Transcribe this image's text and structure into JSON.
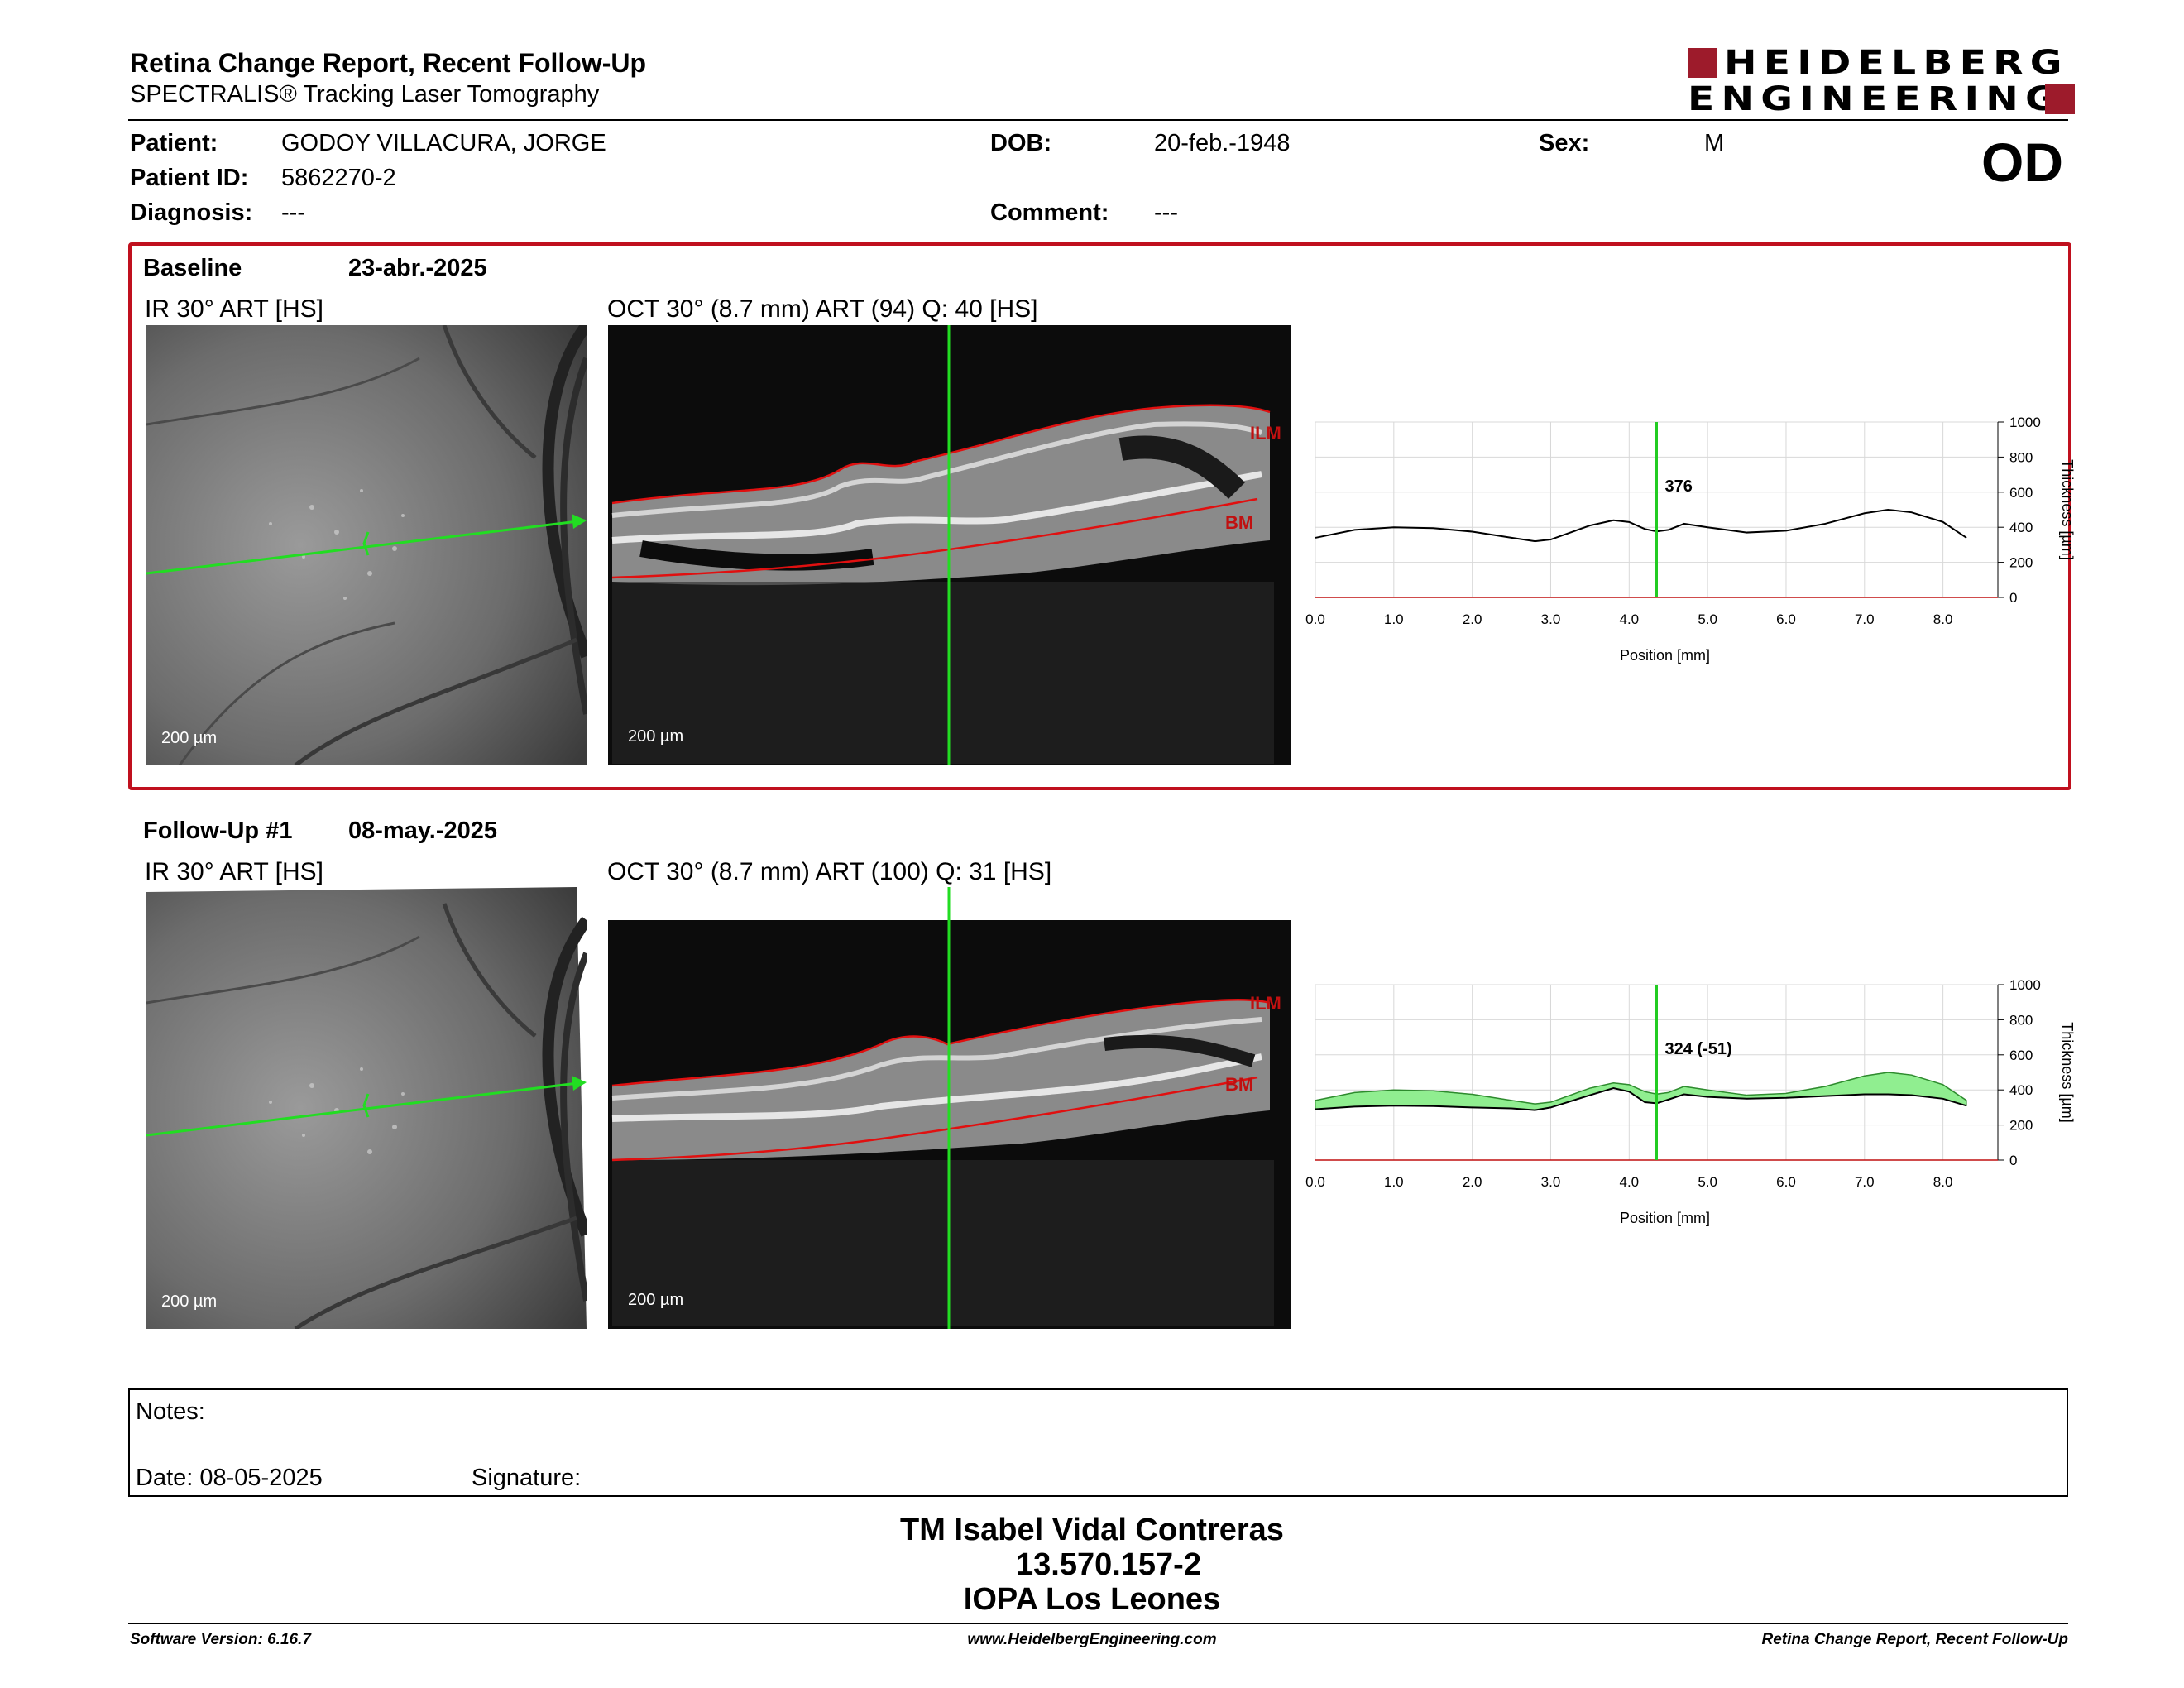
{
  "header": {
    "title": "Retina Change Report, Recent Follow-Up",
    "subtitle": "SPECTRALIS® Tracking Laser Tomography",
    "logo_line1": "HEIDELBERG",
    "logo_line2": "ENGINEERING",
    "eye": "OD"
  },
  "patient": {
    "patient_label": "Patient:",
    "patient_value": "GODOY  VILLACURA, JORGE",
    "id_label": "Patient ID:",
    "id_value": "5862270-2",
    "diagnosis_label": "Diagnosis:",
    "diagnosis_value": "---",
    "dob_label": "DOB:",
    "dob_value": "20-feb.-1948",
    "comment_label": "Comment:",
    "comment_value": "---",
    "sex_label": "Sex:",
    "sex_value": "M"
  },
  "baseline": {
    "label": "Baseline",
    "date": "23-abr.-2025",
    "ir_label": "IR 30° ART [HS]",
    "oct_label": "OCT 30° (8.7 mm) ART (94) Q: 40 [HS]",
    "scale_ir": "200 µm",
    "scale_oct": "200 µm",
    "ilm": "ILM",
    "bm": "BM",
    "marker_value": "376"
  },
  "followup": {
    "label": "Follow-Up #1",
    "date": "08-may.-2025",
    "ir_label": "IR 30° ART [HS]",
    "oct_label": "OCT 30° (8.7 mm) ART (100) Q: 31 [HS]",
    "scale_ir": "200 µm",
    "scale_oct": "200 µm",
    "ilm": "ILM",
    "bm": "BM",
    "marker_value": "324 (-51)"
  },
  "chart_data": [
    {
      "type": "line",
      "xlabel": "Position [mm]",
      "ylabel": "Thickness [µm]",
      "xlim": [
        0,
        8.7
      ],
      "ylim": [
        0,
        1000
      ],
      "xticks": [
        "0.0",
        "1.0",
        "2.0",
        "3.0",
        "4.0",
        "5.0",
        "6.0",
        "7.0",
        "8.0"
      ],
      "yticks": [
        "0",
        "200",
        "400",
        "600",
        "800",
        "1000"
      ],
      "marker_x": 4.35,
      "series": [
        {
          "x": [
            0.0,
            0.5,
            1.0,
            1.5,
            2.0,
            2.5,
            2.8,
            3.0,
            3.5,
            3.8,
            4.0,
            4.2,
            4.35,
            4.5,
            4.7,
            5.0,
            5.5,
            6.0,
            6.5,
            7.0,
            7.3,
            7.6,
            8.0,
            8.3
          ],
          "values": [
            340,
            385,
            400,
            395,
            375,
            340,
            320,
            330,
            410,
            440,
            430,
            390,
            376,
            385,
            420,
            400,
            370,
            380,
            420,
            480,
            500,
            485,
            430,
            340
          ]
        }
      ]
    },
    {
      "type": "area",
      "xlabel": "Position [mm]",
      "ylabel": "Thickness [µm]",
      "xlim": [
        0,
        8.7
      ],
      "ylim": [
        0,
        1000
      ],
      "xticks": [
        "0.0",
        "1.0",
        "2.0",
        "3.0",
        "4.0",
        "5.0",
        "6.0",
        "7.0",
        "8.0"
      ],
      "yticks": [
        "0",
        "200",
        "400",
        "600",
        "800",
        "1000"
      ],
      "marker_x": 4.35,
      "series": [
        {
          "x": [
            0.0,
            0.5,
            1.0,
            1.5,
            2.0,
            2.5,
            2.8,
            3.0,
            3.5,
            3.8,
            4.0,
            4.2,
            4.35,
            4.5,
            4.7,
            5.0,
            5.5,
            6.0,
            6.5,
            7.0,
            7.3,
            7.6,
            8.0,
            8.3
          ],
          "values": [
            340,
            385,
            400,
            395,
            375,
            340,
            320,
            330,
            410,
            440,
            430,
            390,
            376,
            385,
            420,
            400,
            370,
            380,
            420,
            480,
            500,
            485,
            430,
            340
          ]
        },
        {
          "x": [
            0.0,
            0.5,
            1.0,
            1.5,
            2.0,
            2.5,
            2.8,
            3.0,
            3.5,
            3.8,
            4.0,
            4.2,
            4.35,
            4.5,
            4.7,
            5.0,
            5.5,
            6.0,
            6.5,
            7.0,
            7.3,
            7.6,
            8.0,
            8.3
          ],
          "values": [
            290,
            305,
            310,
            308,
            300,
            295,
            285,
            300,
            370,
            410,
            390,
            330,
            324,
            345,
            375,
            360,
            350,
            355,
            365,
            375,
            375,
            370,
            350,
            310
          ]
        }
      ]
    }
  ],
  "notes": {
    "notes_label": "Notes:",
    "date_label": "Date: 08-05-2025",
    "signature_label": "Signature:"
  },
  "signature_block": {
    "name": "TM Isabel Vidal Contreras",
    "rut": "13.570.157-2",
    "clinic": "IOPA Los Leones"
  },
  "footer": {
    "software": "Software Version: 6.16.7",
    "url": "www.HeidelbergEngineering.com",
    "report": "Retina Change Report, Recent Follow-Up"
  },
  "colors": {
    "accent_red": "#c0101e",
    "logo_red": "#9d1b2b",
    "scan_line_green": "#22dd22",
    "thickness_fill_green": "#90ee90",
    "marker_green": "#22cc22"
  }
}
